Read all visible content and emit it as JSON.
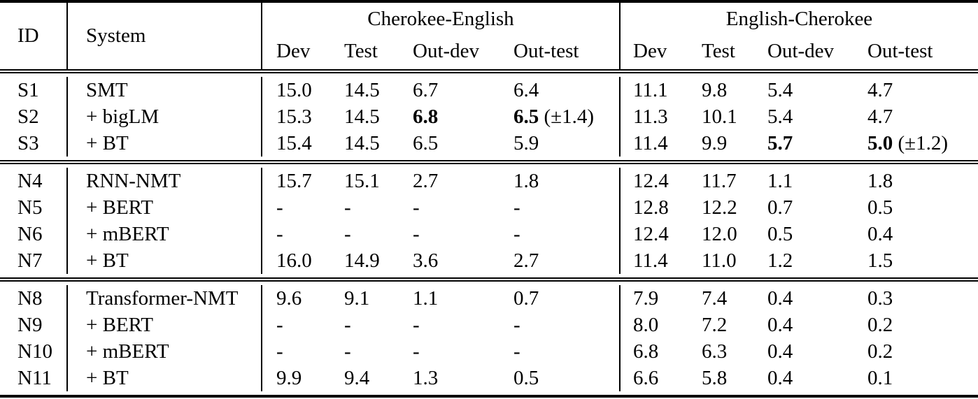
{
  "table": {
    "header": {
      "id_label": "ID",
      "system_label": "System",
      "groups": [
        {
          "label": "Cherokee-English",
          "subcols": [
            "Dev",
            "Test",
            "Out-dev",
            "Out-test"
          ]
        },
        {
          "label": "English-Cherokee",
          "subcols": [
            "Dev",
            "Test",
            "Out-dev",
            "Out-test"
          ]
        }
      ]
    },
    "blocks": [
      {
        "rows": [
          {
            "id": "S1",
            "system": "SMT",
            "cells": [
              "15.0",
              "14.5",
              "6.7",
              "6.4",
              "11.1",
              "9.8",
              "5.4",
              "4.7"
            ]
          },
          {
            "id": "S2",
            "system": "+ bigLM",
            "cells": [
              "15.3",
              "14.5",
              {
                "v": "6.8",
                "bold": true
              },
              {
                "v": "6.5",
                "bold": true,
                "suffix": " (±1.4)"
              },
              "11.3",
              "10.1",
              "5.4",
              "4.7"
            ]
          },
          {
            "id": "S3",
            "system": "+ BT",
            "cells": [
              "15.4",
              "14.5",
              "6.5",
              "5.9",
              "11.4",
              "9.9",
              {
                "v": "5.7",
                "bold": true
              },
              {
                "v": "5.0",
                "bold": true,
                "suffix": " (±1.2)"
              }
            ]
          }
        ]
      },
      {
        "rows": [
          {
            "id": "N4",
            "system": "RNN-NMT",
            "cells": [
              "15.7",
              "15.1",
              "2.7",
              "1.8",
              "12.4",
              "11.7",
              "1.1",
              "1.8"
            ]
          },
          {
            "id": "N5",
            "system": "+ BERT",
            "cells": [
              "-",
              "-",
              "-",
              "-",
              "12.8",
              "12.2",
              "0.7",
              "0.5"
            ]
          },
          {
            "id": "N6",
            "system": "+ mBERT",
            "cells": [
              "-",
              "-",
              "-",
              "-",
              "12.4",
              "12.0",
              "0.5",
              "0.4"
            ]
          },
          {
            "id": "N7",
            "system": "+ BT",
            "cells": [
              "16.0",
              "14.9",
              "3.6",
              "2.7",
              "11.4",
              "11.0",
              "1.2",
              "1.5"
            ]
          }
        ]
      },
      {
        "rows": [
          {
            "id": "N8",
            "system": "Transformer-NMT",
            "cells": [
              "9.6",
              "9.1",
              "1.1",
              "0.7",
              "7.9",
              "7.4",
              "0.4",
              "0.3"
            ]
          },
          {
            "id": "N9",
            "system": "+ BERT",
            "cells": [
              "-",
              "-",
              "-",
              "-",
              "8.0",
              "7.2",
              "0.4",
              "0.2"
            ]
          },
          {
            "id": "N10",
            "system": "+ mBERT",
            "cells": [
              "-",
              "-",
              "-",
              "-",
              "6.8",
              "6.3",
              "0.4",
              "0.2"
            ]
          },
          {
            "id": "N11",
            "system": "+ BT",
            "cells": [
              "9.9",
              "9.4",
              "1.3",
              "0.5",
              "6.6",
              "5.8",
              "0.4",
              "0.1"
            ]
          }
        ]
      }
    ]
  }
}
